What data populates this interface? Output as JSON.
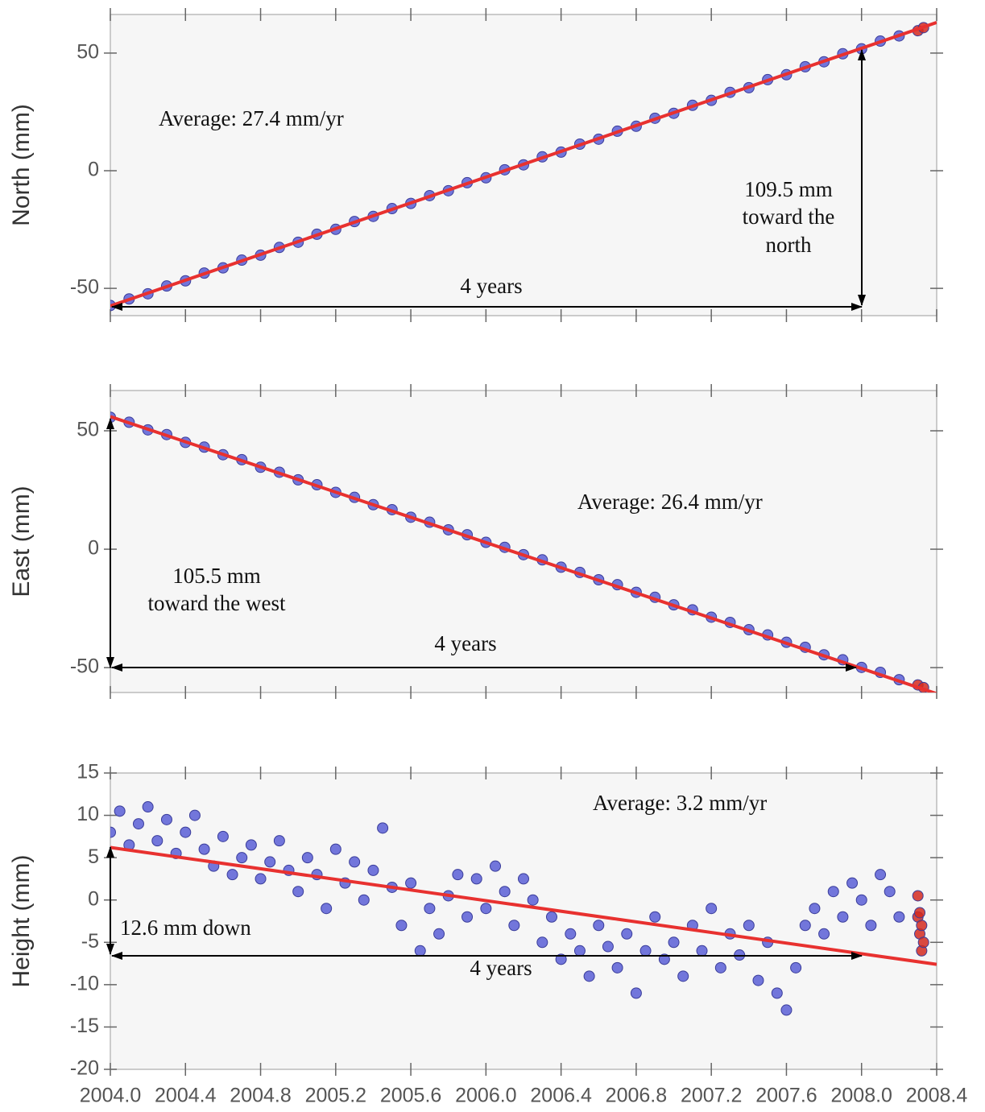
{
  "chart_data": [
    {
      "type": "scatter",
      "ylabel": "North (mm)",
      "xlim": [
        2004.0,
        2008.4
      ],
      "ylim": [
        -61.6,
        66.4
      ],
      "yticks": [
        -50,
        0,
        50
      ],
      "annotations": [
        "Average: 27.4 mm/yr",
        "109.5 mm",
        "toward the",
        "north",
        "4 years"
      ],
      "series": [
        {
          "mode": "markers",
          "color": "#5b5fd6",
          "x": [
            2004.0,
            2004.1,
            2004.2,
            2004.3,
            2004.4,
            2004.5,
            2004.6,
            2004.7,
            2004.8,
            2004.9,
            2005.0,
            2005.1,
            2005.2,
            2005.3,
            2005.4,
            2005.5,
            2005.6,
            2005.7,
            2005.8,
            2005.9,
            2006.0,
            2006.1,
            2006.2,
            2006.3,
            2006.4,
            2006.5,
            2006.6,
            2006.7,
            2006.8,
            2006.9,
            2007.0,
            2007.1,
            2007.2,
            2007.3,
            2007.4,
            2007.5,
            2007.6,
            2007.7,
            2007.8,
            2007.9,
            2008.0,
            2008.1,
            2008.2
          ],
          "values": [
            -57.3,
            -54.5,
            -52.3,
            -49.0,
            -46.8,
            -43.5,
            -41.3,
            -38.0,
            -35.9,
            -32.6,
            -30.4,
            -27.0,
            -24.9,
            -21.6,
            -19.4,
            -16.1,
            -13.9,
            -10.6,
            -8.5,
            -5.1,
            -3.0,
            0.4,
            2.5,
            5.9,
            7.9,
            11.3,
            13.4,
            16.8,
            18.9,
            22.3,
            24.4,
            27.8,
            29.9,
            33.3,
            35.3,
            38.7,
            40.8,
            44.2,
            46.3,
            49.7,
            51.8,
            55.1,
            57.3
          ]
        },
        {
          "mode": "markers",
          "color": "#d42a20",
          "x": [
            2008.3,
            2008.33
          ],
          "values": [
            59.5,
            60.8
          ]
        },
        {
          "mode": "line",
          "color": "#e8312f",
          "x": [
            2004.0,
            2008.4
          ],
          "values": [
            -57.5,
            63.0
          ]
        }
      ]
    },
    {
      "type": "scatter",
      "ylabel": "East (mm)",
      "xlim": [
        2004.0,
        2008.4
      ],
      "ylim": [
        -60.5,
        67.0
      ],
      "yticks": [
        -50,
        0,
        50
      ],
      "annotations": [
        "Average: 26.4 mm/yr",
        "105.5 mm",
        "toward the west",
        "4 years"
      ],
      "series": [
        {
          "mode": "markers",
          "color": "#5b5fd6",
          "x": [
            2004.0,
            2004.1,
            2004.2,
            2004.3,
            2004.4,
            2004.5,
            2004.6,
            2004.7,
            2004.8,
            2004.9,
            2005.0,
            2005.1,
            2005.2,
            2005.3,
            2005.4,
            2005.5,
            2005.6,
            2005.7,
            2005.8,
            2005.9,
            2006.0,
            2006.1,
            2006.2,
            2006.3,
            2006.4,
            2006.5,
            2006.6,
            2006.7,
            2006.8,
            2006.9,
            2007.0,
            2007.1,
            2007.2,
            2007.3,
            2007.4,
            2007.5,
            2007.6,
            2007.7,
            2007.8,
            2007.9,
            2008.0,
            2008.1,
            2008.2
          ],
          "values": [
            55.7,
            53.6,
            50.4,
            48.4,
            45.1,
            43.1,
            39.9,
            37.8,
            34.6,
            32.5,
            29.3,
            27.2,
            24.0,
            21.9,
            18.8,
            16.7,
            13.5,
            11.4,
            8.2,
            6.1,
            2.9,
            0.8,
            -2.3,
            -4.5,
            -7.6,
            -9.8,
            -12.9,
            -15.0,
            -18.2,
            -20.3,
            -23.5,
            -25.6,
            -28.7,
            -30.9,
            -34.0,
            -36.2,
            -39.3,
            -41.4,
            -44.6,
            -46.7,
            -49.9,
            -52.0,
            -55.1
          ]
        },
        {
          "mode": "markers",
          "color": "#d42a20",
          "x": [
            2008.3,
            2008.33
          ],
          "values": [
            -57.3,
            -58.4
          ]
        },
        {
          "mode": "line",
          "color": "#e8312f",
          "x": [
            2004.0,
            2008.4
          ],
          "values": [
            56.0,
            -61.0
          ]
        }
      ]
    },
    {
      "type": "scatter",
      "ylabel": "Height (mm)",
      "xlim": [
        2004.0,
        2008.4
      ],
      "ylim": [
        -20,
        15
      ],
      "yticks": [
        -20,
        -15,
        -10,
        -5,
        0,
        5,
        10,
        15
      ],
      "xticks": [
        {
          "value": 2004.0,
          "label": "2004.0"
        },
        {
          "value": 2004.4,
          "label": "2004.4"
        },
        {
          "value": 2004.8,
          "label": "2004.8"
        },
        {
          "value": 2005.2,
          "label": "2005.2"
        },
        {
          "value": 2005.6,
          "label": "2005.6"
        },
        {
          "value": 2006.0,
          "label": "2006.0"
        },
        {
          "value": 2006.4,
          "label": "2006.4"
        },
        {
          "value": 2006.8,
          "label": "2006.8"
        },
        {
          "value": 2007.2,
          "label": "2007.2"
        },
        {
          "value": 2007.6,
          "label": "2007.6"
        },
        {
          "value": 2008.0,
          "label": "2008.0"
        },
        {
          "value": 2008.4,
          "label": "2008.4"
        }
      ],
      "annotations": [
        "Average: 3.2 mm/yr",
        "12.6 mm down",
        "4 years"
      ],
      "series": [
        {
          "mode": "markers",
          "color": "#5b5fd6",
          "x": [
            2004.0,
            2004.05,
            2004.1,
            2004.15,
            2004.2,
            2004.25,
            2004.3,
            2004.35,
            2004.4,
            2004.45,
            2004.5,
            2004.55,
            2004.6,
            2004.65,
            2004.7,
            2004.75,
            2004.8,
            2004.85,
            2004.9,
            2004.95,
            2005.0,
            2005.05,
            2005.1,
            2005.15,
            2005.2,
            2005.25,
            2005.3,
            2005.35,
            2005.4,
            2005.45,
            2005.5,
            2005.55,
            2005.6,
            2005.65,
            2005.7,
            2005.75,
            2005.8,
            2005.85,
            2005.9,
            2005.95,
            2006.0,
            2006.05,
            2006.1,
            2006.15,
            2006.2,
            2006.25,
            2006.3,
            2006.35,
            2006.4,
            2006.45,
            2006.5,
            2006.55,
            2006.6,
            2006.65,
            2006.7,
            2006.75,
            2006.8,
            2006.85,
            2006.9,
            2006.95,
            2007.0,
            2007.05,
            2007.1,
            2007.15,
            2007.2,
            2007.25,
            2007.3,
            2007.35,
            2007.4,
            2007.45,
            2007.5,
            2007.55,
            2007.6,
            2007.65,
            2007.7,
            2007.75,
            2007.8,
            2007.85,
            2007.9,
            2007.95,
            2008.0,
            2008.05,
            2008.1,
            2008.15,
            2008.2
          ],
          "values": [
            8,
            10.5,
            6.5,
            9,
            11,
            7,
            9.5,
            5.5,
            8,
            10,
            6,
            4,
            7.5,
            3,
            5,
            6.5,
            2.5,
            4.5,
            7,
            3.5,
            1,
            5,
            3,
            -1,
            6,
            2,
            4.5,
            0,
            3.5,
            8.5,
            1.5,
            -3,
            2,
            -6,
            -1,
            -4,
            0.5,
            3,
            -2,
            2.5,
            -1,
            4,
            1,
            -3,
            2.5,
            0,
            -5,
            -2,
            -7,
            -4,
            -6,
            -9,
            -3,
            -5.5,
            -8,
            -4,
            -11,
            -6,
            -2,
            -7,
            -5,
            -9,
            -3,
            -6,
            -1,
            -8,
            -4,
            -6.5,
            -3,
            -9.5,
            -5,
            -11,
            -13,
            -8,
            -3,
            -1,
            -4,
            1,
            -2,
            2,
            0,
            -3,
            3,
            1,
            -2
          ]
        },
        {
          "mode": "markers",
          "color": "#d42a20",
          "x": [
            2008.3,
            2008.3,
            2008.31,
            2008.31,
            2008.32,
            2008.32,
            2008.33
          ],
          "values": [
            0.5,
            -2,
            -4,
            -1.5,
            -6,
            -3,
            -5
          ]
        },
        {
          "mode": "line",
          "color": "#e8312f",
          "x": [
            2004.0,
            2008.4
          ],
          "values": [
            6.2,
            -7.6
          ]
        }
      ]
    }
  ]
}
